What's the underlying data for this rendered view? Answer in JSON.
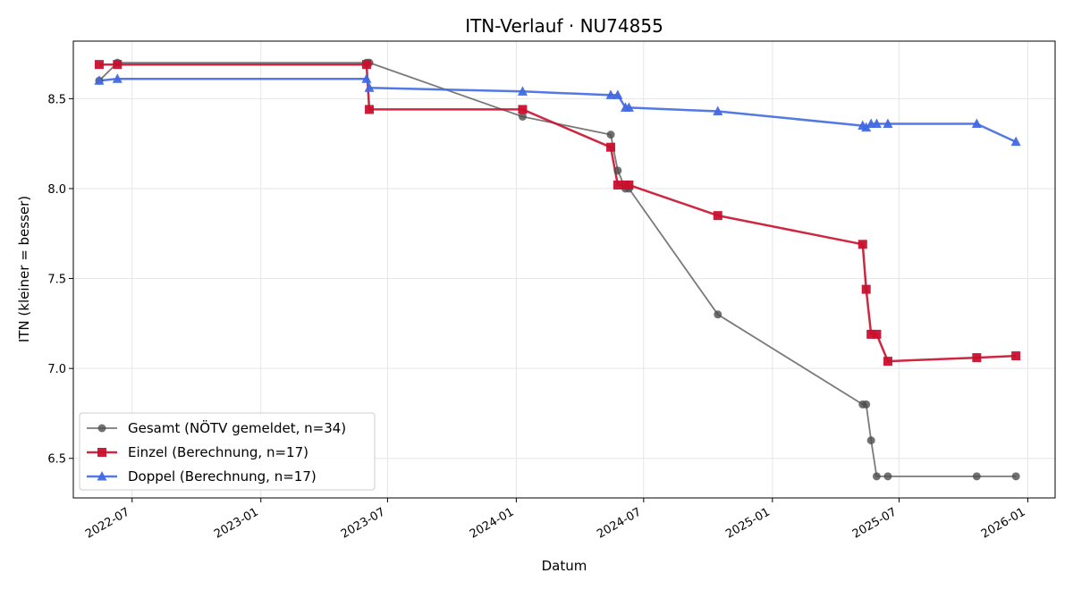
{
  "chart_data": {
    "type": "line",
    "title": "ITN-Verlauf · NU74855",
    "xlabel": "Datum",
    "ylabel": "ITN  (kleiner = besser)",
    "x_ticks": [
      "2022-07",
      "2023-01",
      "2023-07",
      "2024-01",
      "2024-07",
      "2025-01",
      "2025-07",
      "2026-01"
    ],
    "y_ticks": [
      "6.5",
      "7.0",
      "7.5",
      "8.0",
      "8.5"
    ],
    "ylim": [
      6.28,
      8.82
    ],
    "xlim": [
      "2022-04-08",
      "2026-02-09"
    ],
    "grid": true,
    "legend_position": "lower-left",
    "series": [
      {
        "name": "Gesamt (NÖTV gemeldet, n=34)",
        "color": "#4d4d4d",
        "marker": "circle",
        "x": [
          "2022-05-15",
          "2022-06-10",
          "2023-06-01",
          "2023-06-05",
          "2024-01-10",
          "2024-05-15",
          "2024-05-25",
          "2024-06-05",
          "2024-06-10",
          "2024-10-15",
          "2025-05-10",
          "2025-05-15",
          "2025-05-22",
          "2025-05-30",
          "2025-06-15",
          "2025-10-20",
          "2025-12-15"
        ],
        "y": [
          8.6,
          8.7,
          8.7,
          8.7,
          8.4,
          8.3,
          8.1,
          8.0,
          8.0,
          7.3,
          6.8,
          6.8,
          6.6,
          6.4,
          6.4,
          6.4,
          6.4
        ]
      },
      {
        "name": "Einzel (Berechnung, n=17)",
        "color": "#c8102e",
        "marker": "square",
        "x": [
          "2022-05-15",
          "2022-06-10",
          "2023-06-01",
          "2023-06-05",
          "2024-01-10",
          "2024-05-15",
          "2024-05-25",
          "2024-06-05",
          "2024-06-10",
          "2024-10-15",
          "2025-05-10",
          "2025-05-15",
          "2025-05-22",
          "2025-05-30",
          "2025-06-15",
          "2025-10-20",
          "2025-12-15"
        ],
        "y": [
          8.69,
          8.69,
          8.69,
          8.44,
          8.44,
          8.23,
          8.02,
          8.02,
          8.02,
          7.85,
          7.69,
          7.44,
          7.19,
          7.19,
          7.04,
          7.06,
          7.07
        ]
      },
      {
        "name": "Doppel (Berechnung, n=17)",
        "color": "#4169e1",
        "marker": "triangle",
        "x": [
          "2022-05-15",
          "2022-06-10",
          "2023-06-01",
          "2023-06-05",
          "2024-01-10",
          "2024-05-15",
          "2024-05-25",
          "2024-06-05",
          "2024-06-10",
          "2024-10-15",
          "2025-05-10",
          "2025-05-15",
          "2025-05-22",
          "2025-05-30",
          "2025-06-15",
          "2025-10-20",
          "2025-12-15"
        ],
        "y": [
          8.6,
          8.61,
          8.61,
          8.56,
          8.54,
          8.52,
          8.52,
          8.45,
          8.45,
          8.43,
          8.35,
          8.34,
          8.36,
          8.36,
          8.36,
          8.36,
          8.26
        ]
      }
    ]
  }
}
